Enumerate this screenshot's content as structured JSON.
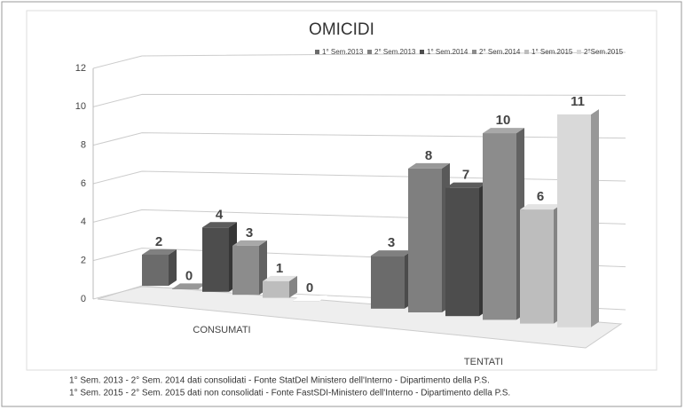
{
  "chart_data": {
    "type": "bar3d",
    "title": "OMICIDI",
    "categories": [
      "CONSUMATI",
      "TENTATI"
    ],
    "series": [
      {
        "name": "1° Sem.2013",
        "color": "#6b6b6b",
        "values": [
          2,
          3
        ]
      },
      {
        "name": "2° Sem.2013",
        "color": "#7f7f7f",
        "values": [
          0,
          8
        ]
      },
      {
        "name": "1° Sem.2014",
        "color": "#4d4d4d",
        "values": [
          4,
          7
        ]
      },
      {
        "name": "2° Sem.2014",
        "color": "#8c8c8c",
        "values": [
          3,
          10
        ]
      },
      {
        "name": "1° Sem.2015",
        "color": "#bdbdbd",
        "values": [
          1,
          6
        ]
      },
      {
        "name": "2°Sem.2015",
        "color": "#d9d9d9",
        "values": [
          0,
          11
        ]
      }
    ],
    "ylim": [
      0,
      12
    ],
    "yticks": [
      0,
      2,
      4,
      6,
      8,
      10,
      12
    ],
    "grid": true,
    "legend": "top",
    "notes": [
      "1° Sem. 2013 - 2° Sem. 2014 dati consolidati - Fonte StatDel Ministero dell'Interno - Dipartimento della P.S.",
      "1° Sem. 2015 - 2° Sem. 2015 dati non consolidati - Fonte FastSDI-Ministero dell'Interno - Dipartimento della P.S."
    ]
  }
}
